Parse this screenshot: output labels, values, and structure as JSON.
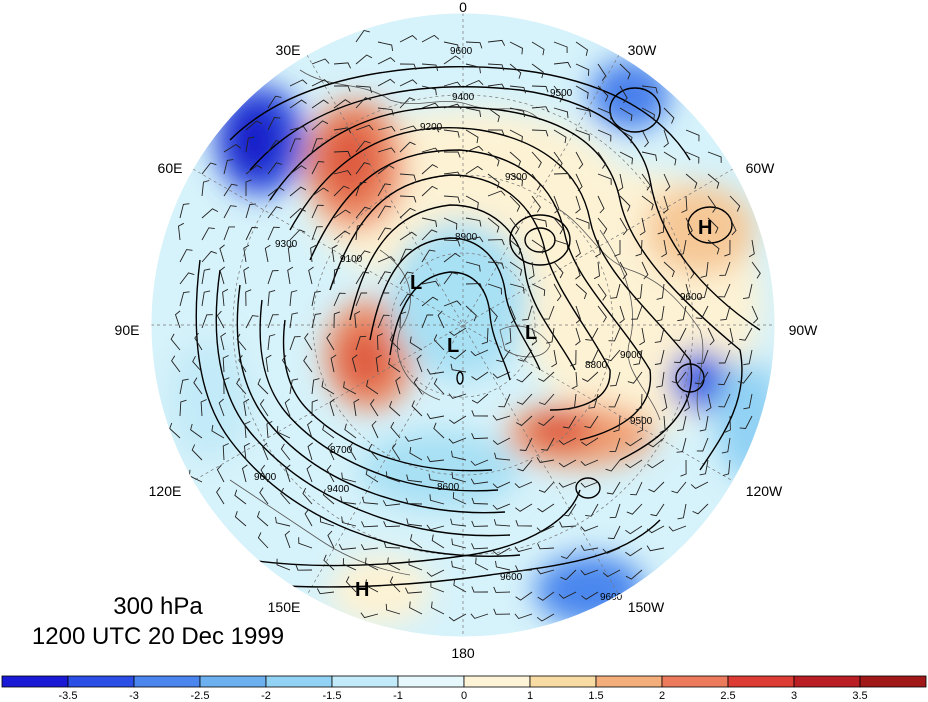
{
  "map": {
    "level_label": "300 hPa",
    "time_label": "1200 UTC 20 Dec 1999",
    "longitude_labels": [
      "0",
      "30W",
      "60W",
      "90W",
      "120W",
      "150W",
      "180",
      "150E",
      "120E",
      "90E",
      "60E",
      "30E"
    ],
    "contour_values": [
      "9600",
      "9500",
      "9400",
      "9300",
      "9200",
      "9100",
      "9000",
      "8900",
      "8800",
      "8700",
      "8600"
    ],
    "pressure_centers": [
      {
        "label": "H",
        "name": "high-north-america"
      },
      {
        "label": "H",
        "name": "high-pacific"
      },
      {
        "label": "L",
        "name": "low-siberia"
      },
      {
        "label": "L",
        "name": "low-pole"
      },
      {
        "label": "L",
        "name": "low-canada"
      }
    ],
    "colors": {
      "coast": "#555555",
      "contour": "#000000"
    }
  },
  "colorbar": {
    "tick_labels": [
      "-3.5",
      "-3",
      "-2.5",
      "-2",
      "-1.5",
      "-1",
      "0",
      "1",
      "1.5",
      "2",
      "2.5",
      "3",
      "3.5"
    ],
    "colors": [
      "#1a1ad6",
      "#2a4ee6",
      "#4a86ee",
      "#6cb0f0",
      "#92d2f4",
      "#c2eaf8",
      "#e6f8fc",
      "#fdf4d8",
      "#f9dca4",
      "#f3ae7c",
      "#ec7a5c",
      "#dc3c34",
      "#b81e24",
      "#a01818"
    ]
  }
}
